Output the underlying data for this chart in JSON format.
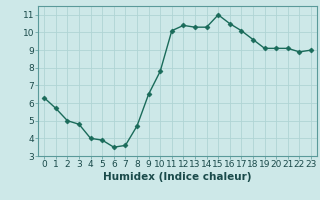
{
  "x": [
    0,
    1,
    2,
    3,
    4,
    5,
    6,
    7,
    8,
    9,
    10,
    11,
    12,
    13,
    14,
    15,
    16,
    17,
    18,
    19,
    20,
    21,
    22,
    23
  ],
  "y": [
    6.3,
    5.7,
    5.0,
    4.8,
    4.0,
    3.9,
    3.5,
    3.6,
    4.7,
    6.5,
    7.8,
    10.1,
    10.4,
    10.3,
    10.3,
    11.0,
    10.5,
    10.1,
    9.6,
    9.1,
    9.1,
    9.1,
    8.9,
    9.0
  ],
  "line_color": "#1a6b5a",
  "marker": "D",
  "marker_size": 2.5,
  "bg_color": "#cde8e8",
  "grid_color": "#b0d4d4",
  "xlabel": "Humidex (Indice chaleur)",
  "xlim": [
    -0.5,
    23.5
  ],
  "ylim": [
    3,
    11.5
  ],
  "yticks": [
    3,
    4,
    5,
    6,
    7,
    8,
    9,
    10,
    11
  ],
  "xticks": [
    0,
    1,
    2,
    3,
    4,
    5,
    6,
    7,
    8,
    9,
    10,
    11,
    12,
    13,
    14,
    15,
    16,
    17,
    18,
    19,
    20,
    21,
    22,
    23
  ],
  "tick_label_fontsize": 6.5,
  "xlabel_fontsize": 7.5,
  "linewidth": 1.0
}
